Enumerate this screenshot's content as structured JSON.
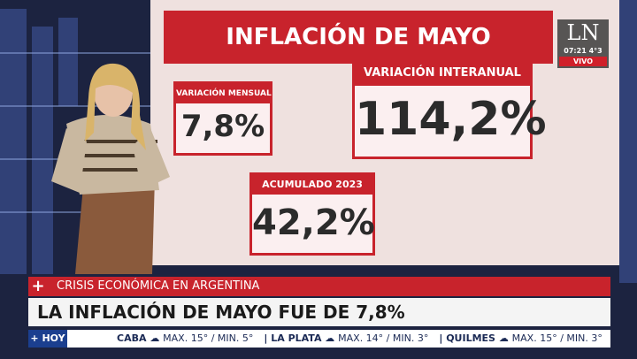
{
  "screen": {
    "title": "INFLACIÓN DE MAYO",
    "boxes": [
      {
        "label": "VARIACIÓN MENSUAL",
        "value": "7,8%"
      },
      {
        "label": "VARIACIÓN INTERANUAL",
        "value": "114,2%"
      },
      {
        "label": "ACUMULADO 2023",
        "value": "42,2%"
      }
    ]
  },
  "logo": {
    "text": "LN",
    "time": "07:21",
    "temp": "4°3",
    "live": "VIVO"
  },
  "lower_third": {
    "icon": "+",
    "topic": "CRISIS ECONÓMICA EN ARGENTINA",
    "headline": "LA INFLACIÓN DE MAYO FUE DE 7,8%"
  },
  "ticker": {
    "tag": "+ HOY",
    "items": [
      {
        "city": "CABA",
        "forecast": "MAX. 15° / MIN. 5°"
      },
      {
        "city": "LA PLATA",
        "forecast": "MAX. 14° / MIN. 3°"
      },
      {
        "city": "QUILMES",
        "forecast": "MAX. 15° / MIN. 3°"
      }
    ]
  }
}
